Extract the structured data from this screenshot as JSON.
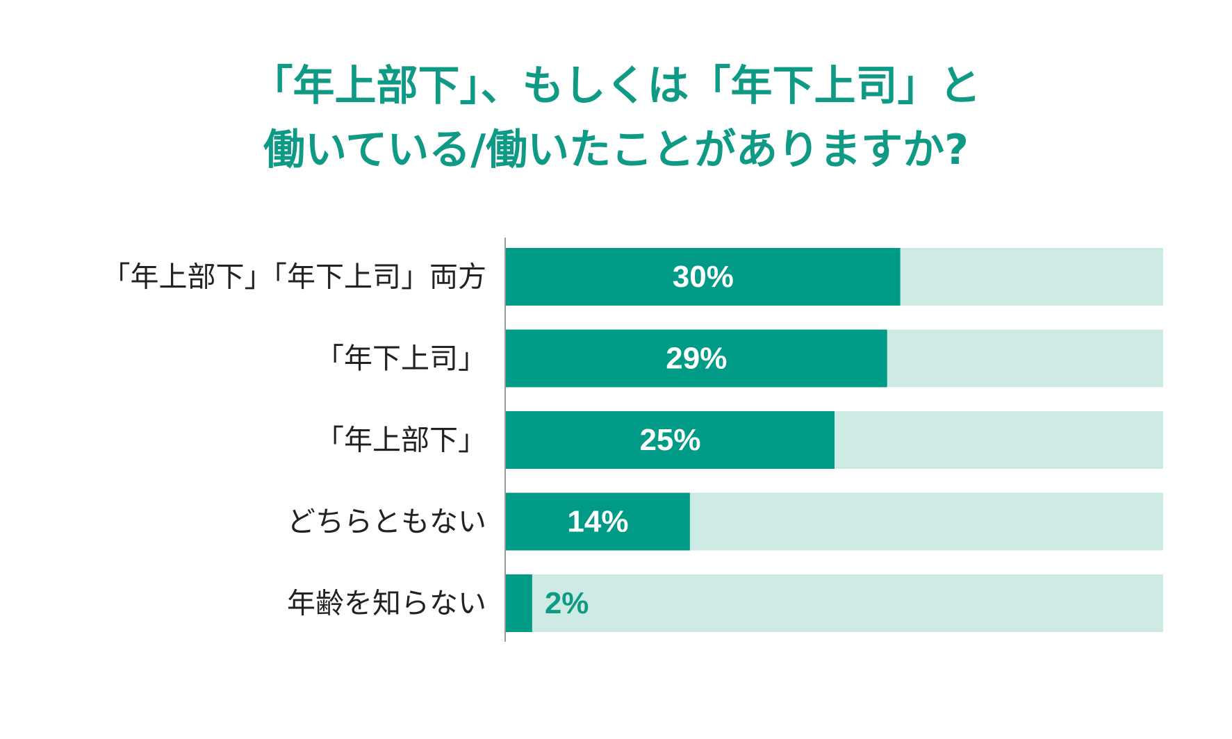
{
  "title_lines": [
    "「年上部下」、もしくは「年下上司」と",
    "働いている/働いたことがありますか?"
  ],
  "colors": {
    "accent": "#0e9a85",
    "bar": "#009b86",
    "track": "#cdebe4",
    "axis": "#9a9a9a",
    "label": "#222222",
    "value_inside": "#ffffff",
    "value_outside": "#0e9a85"
  },
  "chart_data": {
    "type": "bar",
    "orientation": "horizontal",
    "title": "「年上部下」、もしくは「年下上司」と働いている/働いたことがありますか?",
    "categories": [
      "「年上部下」「年下上司」両方",
      "「年下上司」",
      "「年上部下」",
      "どちらともない",
      "年齢を知らない"
    ],
    "values": [
      30,
      29,
      25,
      14,
      2
    ],
    "value_labels": [
      "30%",
      "29%",
      "25%",
      "14%",
      "2%"
    ],
    "unit": "%",
    "xlim": [
      0,
      50
    ],
    "grid": false,
    "legend": "none"
  }
}
